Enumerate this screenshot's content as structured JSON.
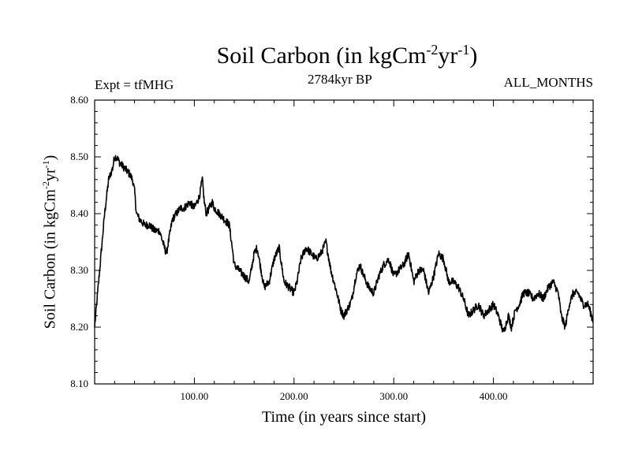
{
  "chart_data": {
    "type": "line",
    "title": "Soil Carbon (in kgCm-2yr-1)",
    "title_main": "Soil Carbon (in kgCm",
    "title_exp1": "-2",
    "title_mid": "yr",
    "title_exp2": "-1",
    "title_end": ")",
    "ylabel": "Soil Carbon (in kgCm-2yr-1)",
    "ylabel_main": "Soil Carbon (in kgCm",
    "ylabel_exp1": "-2",
    "ylabel_mid": "yr",
    "ylabel_exp2": "-1",
    "ylabel_end": ")",
    "xlabel": "Time (in years since start)",
    "experiment": "Expt = tfMHG",
    "period": "2784kyr BP",
    "months": "ALL_MONTHS",
    "xlim": [
      0,
      500
    ],
    "ylim": [
      8.1,
      8.6
    ],
    "xticks": [
      {
        "value": 100,
        "label": "100.00"
      },
      {
        "value": 200,
        "label": "200.00"
      },
      {
        "value": 300,
        "label": "300.00"
      },
      {
        "value": 400,
        "label": "400.00"
      }
    ],
    "yticks": [
      {
        "value": 8.1,
        "label": "8.10"
      },
      {
        "value": 8.2,
        "label": "8.20"
      },
      {
        "value": 8.3,
        "label": "8.30"
      },
      {
        "value": 8.4,
        "label": "8.40"
      },
      {
        "value": 8.5,
        "label": "8.50"
      },
      {
        "value": 8.6,
        "label": "8.60"
      }
    ],
    "series": [
      {
        "name": "Soil Carbon",
        "color": "#000000",
        "x": [
          0,
          3,
          6,
          10,
          14,
          18,
          20,
          22,
          25,
          30,
          35,
          38,
          40,
          42,
          45,
          50,
          55,
          60,
          65,
          70,
          72,
          75,
          78,
          82,
          86,
          90,
          95,
          100,
          105,
          108,
          110,
          112,
          115,
          118,
          120,
          125,
          130,
          135,
          138,
          140,
          145,
          150,
          155,
          160,
          163,
          167,
          170,
          175,
          180,
          185,
          190,
          195,
          200,
          203,
          207,
          212,
          217,
          222,
          227,
          232,
          237,
          240,
          243,
          247,
          250,
          253,
          256,
          258,
          262,
          266,
          270,
          275,
          280,
          285,
          290,
          295,
          300,
          305,
          310,
          315,
          320,
          325,
          330,
          335,
          340,
          345,
          350,
          355,
          360,
          365,
          370,
          375,
          380,
          385,
          390,
          395,
          400,
          405,
          410,
          415,
          418,
          422,
          426,
          430,
          435,
          440,
          445,
          450,
          455,
          460,
          465,
          468,
          472,
          476,
          480,
          485,
          490,
          495,
          500
        ],
        "y": [
          8.2,
          8.26,
          8.32,
          8.4,
          8.46,
          8.48,
          8.5,
          8.5,
          8.49,
          8.48,
          8.47,
          8.46,
          8.44,
          8.4,
          8.39,
          8.38,
          8.38,
          8.37,
          8.37,
          8.34,
          8.33,
          8.36,
          8.39,
          8.4,
          8.41,
          8.41,
          8.42,
          8.41,
          8.43,
          8.46,
          8.42,
          8.4,
          8.41,
          8.42,
          8.41,
          8.4,
          8.39,
          8.38,
          8.34,
          8.31,
          8.3,
          8.29,
          8.28,
          8.33,
          8.34,
          8.3,
          8.27,
          8.28,
          8.32,
          8.34,
          8.28,
          8.27,
          8.26,
          8.28,
          8.32,
          8.34,
          8.33,
          8.32,
          8.33,
          8.35,
          8.3,
          8.28,
          8.26,
          8.23,
          8.22,
          8.23,
          8.24,
          8.25,
          8.29,
          8.31,
          8.29,
          8.27,
          8.26,
          8.29,
          8.31,
          8.32,
          8.29,
          8.3,
          8.31,
          8.33,
          8.28,
          8.3,
          8.3,
          8.26,
          8.29,
          8.33,
          8.32,
          8.28,
          8.28,
          8.27,
          8.25,
          8.22,
          8.23,
          8.24,
          8.22,
          8.23,
          8.24,
          8.22,
          8.19,
          8.22,
          8.2,
          8.23,
          8.24,
          8.26,
          8.26,
          8.25,
          8.26,
          8.25,
          8.27,
          8.28,
          8.26,
          8.22,
          8.2,
          8.24,
          8.26,
          8.26,
          8.24,
          8.24,
          8.21
        ]
      }
    ]
  }
}
